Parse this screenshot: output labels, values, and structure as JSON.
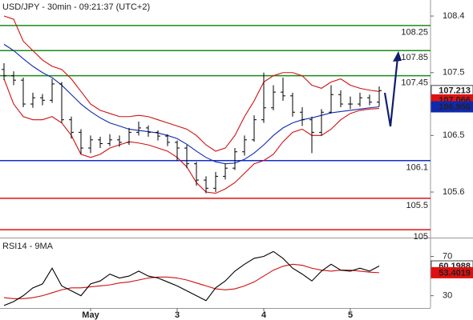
{
  "chart_data": [
    {
      "type": "ohlc",
      "title": "USD/JPY - 30min - 09:21:37 (UTC+2)",
      "categories": [
        null,
        null,
        null,
        null,
        null,
        null,
        null,
        null,
        null,
        "May",
        null,
        null,
        null,
        null,
        null,
        null,
        null,
        null,
        "3",
        null,
        null,
        null,
        null,
        null,
        null,
        null,
        null,
        "4",
        null,
        null,
        null,
        null,
        null,
        null,
        null,
        null,
        "5",
        null,
        null,
        null
      ],
      "open": [
        107.55,
        107.45,
        107.38,
        107.0,
        107.1,
        107.06,
        107.32,
        106.75,
        106.55,
        106.3,
        106.43,
        106.37,
        106.43,
        106.39,
        106.55,
        106.62,
        106.55,
        106.49,
        106.39,
        106.3,
        106.05,
        105.79,
        105.66,
        105.85,
        105.98,
        106.24,
        106.43,
        106.75,
        106.94,
        107.19,
        107.13,
        106.87,
        106.75,
        106.55,
        106.87,
        107.15,
        107.0,
        107.0,
        107.1,
        107.03
      ],
      "high": [
        107.65,
        107.52,
        107.42,
        107.18,
        107.16,
        107.4,
        107.35,
        106.8,
        106.6,
        106.5,
        106.48,
        106.52,
        106.5,
        106.62,
        106.72,
        106.66,
        106.58,
        106.52,
        106.42,
        106.35,
        106.08,
        105.85,
        105.92,
        106.05,
        106.3,
        106.5,
        106.82,
        107.5,
        107.3,
        107.42,
        107.18,
        106.95,
        106.8,
        106.92,
        107.3,
        107.22,
        107.12,
        107.18,
        107.15,
        107.28
      ],
      "low": [
        107.38,
        107.3,
        106.95,
        106.94,
        106.98,
        107.02,
        106.7,
        106.45,
        106.2,
        106.22,
        106.3,
        106.33,
        106.32,
        106.35,
        106.5,
        106.48,
        106.42,
        106.33,
        106.1,
        105.98,
        105.7,
        105.58,
        105.6,
        105.8,
        105.95,
        106.18,
        106.4,
        106.7,
        106.9,
        107.05,
        106.8,
        106.65,
        106.22,
        106.5,
        106.85,
        106.95,
        106.92,
        106.96,
        106.98,
        106.96
      ],
      "close": [
        107.45,
        107.38,
        107.0,
        107.1,
        107.06,
        107.32,
        106.75,
        106.55,
        106.3,
        106.43,
        106.37,
        106.43,
        106.39,
        106.55,
        106.62,
        106.55,
        106.49,
        106.39,
        106.3,
        106.05,
        105.79,
        105.66,
        105.85,
        105.98,
        106.24,
        106.43,
        106.75,
        106.94,
        107.19,
        107.13,
        106.87,
        106.75,
        106.55,
        106.87,
        107.15,
        107.0,
        107.0,
        107.1,
        107.03,
        107.213
      ],
      "upper": [
        108.4,
        108.35,
        108.0,
        107.85,
        107.7,
        107.6,
        107.55,
        107.4,
        107.2,
        107.0,
        106.9,
        106.85,
        106.8,
        106.8,
        106.82,
        106.8,
        106.75,
        106.7,
        106.65,
        106.6,
        106.5,
        106.35,
        106.25,
        106.3,
        106.5,
        106.8,
        107.05,
        107.35,
        107.45,
        107.5,
        107.5,
        107.45,
        107.3,
        107.25,
        107.35,
        107.4,
        107.3,
        107.25,
        107.22,
        107.2
      ],
      "lower": [
        107.4,
        107.0,
        106.8,
        106.75,
        106.75,
        106.8,
        106.7,
        106.5,
        106.2,
        106.15,
        106.2,
        106.3,
        106.35,
        106.4,
        106.38,
        106.35,
        106.3,
        106.25,
        106.15,
        106.0,
        105.75,
        105.6,
        105.58,
        105.65,
        105.75,
        105.9,
        106.05,
        106.1,
        106.2,
        106.4,
        106.55,
        106.6,
        106.5,
        106.5,
        106.6,
        106.75,
        106.85,
        106.9,
        106.92,
        106.93
      ],
      "ma": [
        107.95,
        107.85,
        107.72,
        107.6,
        107.5,
        107.42,
        107.3,
        107.15,
        107.0,
        106.88,
        106.78,
        106.7,
        106.65,
        106.6,
        106.58,
        106.56,
        106.54,
        106.5,
        106.45,
        106.36,
        106.25,
        106.15,
        106.08,
        106.05,
        106.06,
        106.12,
        106.22,
        106.35,
        106.5,
        106.62,
        106.7,
        106.75,
        106.78,
        106.82,
        106.86,
        106.88,
        106.9,
        106.92,
        106.94,
        106.956
      ],
      "bar_color": "#000000",
      "band_color": "#d01010",
      "ma_color": "#1028b0",
      "levels": [
        {
          "value": 108.25,
          "color": "#1a8a1a"
        },
        {
          "value": 107.85,
          "color": "#1a8a1a"
        },
        {
          "value": 107.45,
          "color": "#1a8a1a"
        },
        {
          "value": 106.1,
          "color": "#1030c8"
        },
        {
          "value": 105.5,
          "color": "#e01010"
        },
        {
          "value": 105,
          "color": "#e01010"
        }
      ],
      "markers": [
        {
          "value": 107.213,
          "color": "#ffffff"
        },
        {
          "value": 107.066,
          "color": "#e01010"
        },
        {
          "value": 106.956,
          "color": "#1028b0"
        }
      ],
      "ylim": [
        104.875,
        108.655
      ],
      "yticks": [
        108.4,
        107.5,
        106.5,
        105.6
      ]
    },
    {
      "type": "rsi",
      "title": "RSI14 - 9MA",
      "values": [
        20,
        24,
        30,
        38,
        42,
        58,
        40,
        35,
        30,
        42,
        45,
        52,
        48,
        50,
        55,
        50,
        48,
        44,
        40,
        35,
        30,
        25,
        38,
        45,
        55,
        62,
        68,
        70,
        75,
        68,
        58,
        52,
        45,
        55,
        62,
        56,
        55,
        58,
        55,
        60.1988
      ],
      "ma": [
        28,
        27,
        27,
        28,
        30,
        33,
        36,
        38,
        38,
        39,
        40,
        41,
        43,
        44,
        46,
        48,
        49,
        49,
        48,
        46,
        43,
        40,
        37,
        36,
        37,
        40,
        44,
        50,
        56,
        60,
        62,
        61,
        58,
        56,
        55,
        56,
        56,
        55,
        54,
        53.4019
      ],
      "line_color": "#000000",
      "ma_color": "#d01010",
      "markers": [
        {
          "value": 60.1988,
          "color": "#ffffff"
        },
        {
          "value": 53.4019,
          "color": "#e01010"
        }
      ],
      "ylim": [
        17.5,
        88.3
      ],
      "yticks": [
        70,
        30
      ]
    }
  ]
}
